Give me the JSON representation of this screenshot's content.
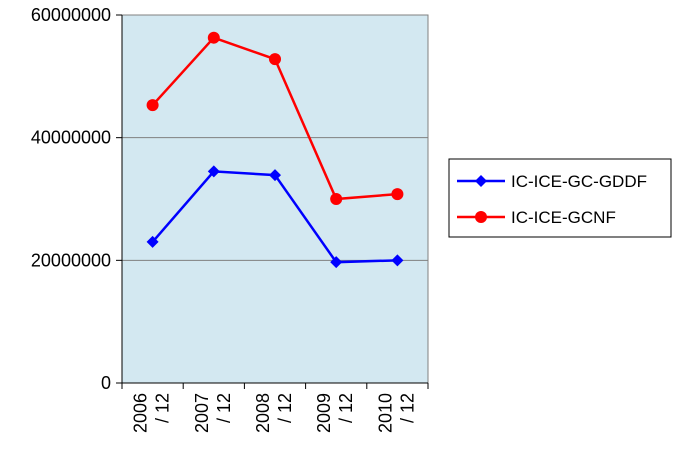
{
  "chart_data": {
    "type": "line",
    "title": "",
    "xlabel": "",
    "ylabel": "",
    "categories": [
      "2006 / 12",
      "2007 / 12",
      "2008 / 12",
      "2009 / 12",
      "2010 / 12"
    ],
    "category_lines": [
      [
        "2006",
        "/ 12"
      ],
      [
        "2007",
        "/ 12"
      ],
      [
        "2008",
        "/ 12"
      ],
      [
        "2009",
        "/ 12"
      ],
      [
        "2010",
        "/ 12"
      ]
    ],
    "ylim": [
      0,
      60000000
    ],
    "yticks": [
      0,
      20000000,
      40000000,
      60000000
    ],
    "ytick_labels": [
      "0",
      "20000000",
      "40000000",
      "60000000"
    ],
    "grid": true,
    "legend_position": "right",
    "plot_background": "#d3e8f1",
    "series": [
      {
        "name": "IC-ICE-GC-GDDF",
        "color": "#0000ff",
        "marker": "diamond",
        "values": [
          23000000,
          34500000,
          33900000,
          19700000,
          20000000
        ]
      },
      {
        "name": "IC-ICE-GCNF",
        "color": "#ff0000",
        "marker": "circle",
        "values": [
          45300000,
          56300000,
          52800000,
          30000000,
          30800000
        ]
      }
    ]
  }
}
